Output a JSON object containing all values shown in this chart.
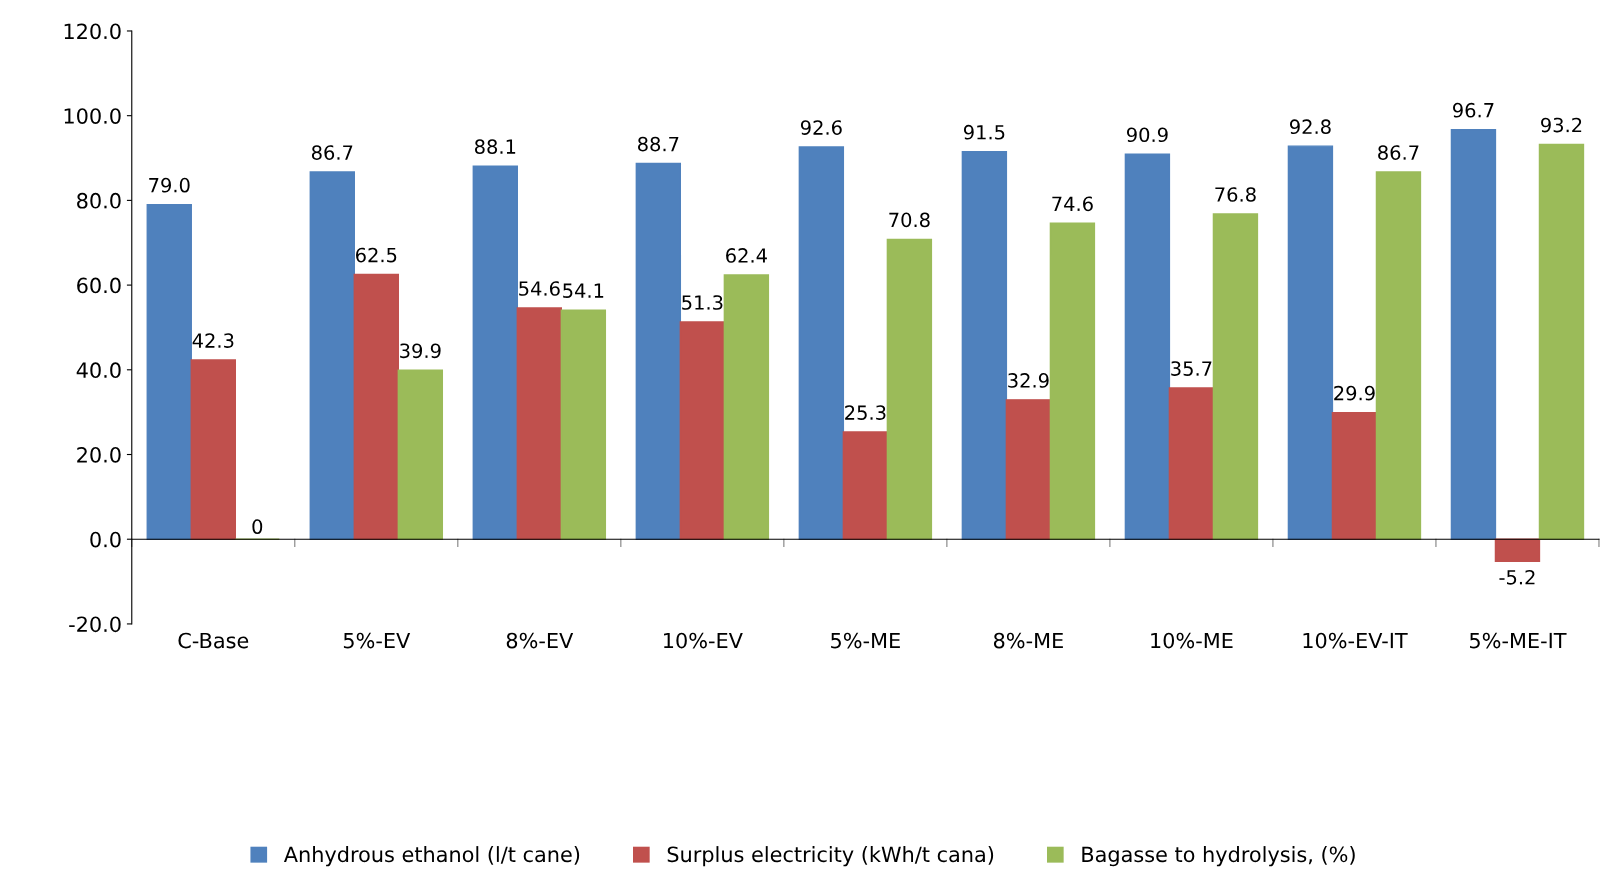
{
  "chart_data": {
    "type": "bar",
    "categories": [
      "C-Base",
      "5%-EV",
      "8%-EV",
      "10%-EV",
      "5%-ME",
      "8%-ME",
      "10%-ME",
      "10%-EV-IT",
      "5%-ME-IT"
    ],
    "series": [
      {
        "name": "Anhydrous ethanol (l/t cane)",
        "color": "#4f81bd",
        "values": [
          79.0,
          86.7,
          88.1,
          88.7,
          92.6,
          91.5,
          90.9,
          92.8,
          96.7
        ],
        "value_labels": [
          "79.0",
          "86.7",
          "88.1",
          "88.7",
          "92.6",
          "91.5",
          "90.9",
          "92.8",
          "96.7"
        ]
      },
      {
        "name": "Surplus electricity (kWh/t cana)",
        "color": "#c0504d",
        "values": [
          42.3,
          62.5,
          54.6,
          51.3,
          25.3,
          32.9,
          35.7,
          29.9,
          -5.2
        ],
        "value_labels": [
          "42.3",
          "62.5",
          "54.6",
          "51.3",
          "25.3",
          "32.9",
          "35.7",
          "29.9",
          "-5.2"
        ]
      },
      {
        "name": "Bagasse to hydrolysis, (%)",
        "color": "#9bbb59",
        "values": [
          0,
          39.9,
          54.1,
          62.4,
          70.8,
          74.6,
          76.8,
          86.7,
          93.2
        ],
        "value_labels": [
          "0",
          "39.9",
          "54.1",
          "62.4",
          "70.8",
          "74.6",
          "76.8",
          "86.7",
          "93.2"
        ]
      }
    ],
    "ylim": [
      -20,
      120
    ],
    "yticks": [
      {
        "value": -20,
        "label": "-20.0"
      },
      {
        "value": 0,
        "label": "0.0"
      },
      {
        "value": 20,
        "label": "20.0"
      },
      {
        "value": 40,
        "label": "40.0"
      },
      {
        "value": 60,
        "label": "60.0"
      },
      {
        "value": 80,
        "label": "80.0"
      },
      {
        "value": 100,
        "label": "100.0"
      },
      {
        "value": 120,
        "label": "120.0"
      }
    ],
    "legend": "bottom"
  }
}
